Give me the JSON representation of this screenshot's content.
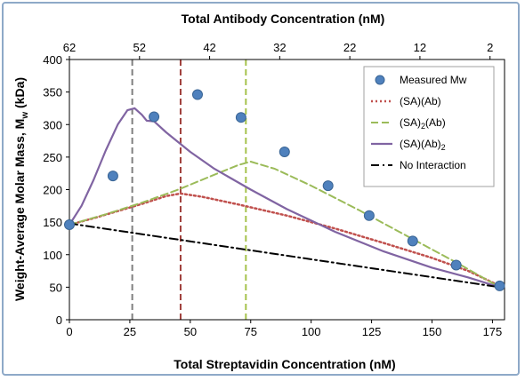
{
  "chart_data": {
    "type": "line",
    "xlabel": "Total Streptavidin Concentration (nM)",
    "x2label": "Total Antibody Concentration (nM)",
    "ylabel_main": "Weight-Average Molar Mass, M",
    "ylabel_sub": "w",
    "ylabel_unit": " (kDa)",
    "xlim": [
      0,
      180
    ],
    "ylim": [
      0,
      400
    ],
    "xticks": [
      "0",
      "25",
      "50",
      "75",
      "100",
      "125",
      "150",
      "175"
    ],
    "xtick_values": [
      0,
      25,
      50,
      75,
      100,
      125,
      150,
      175
    ],
    "yticks": [
      "0",
      "50",
      "100",
      "150",
      "200",
      "250",
      "300",
      "350",
      "400"
    ],
    "ytick_values": [
      0,
      50,
      100,
      150,
      200,
      250,
      300,
      350,
      400
    ],
    "x2ticks": [
      "62",
      "52",
      "42",
      "32",
      "22",
      "12",
      "2"
    ],
    "x2tick_values": [
      0,
      29,
      58,
      87,
      116,
      145,
      174
    ],
    "vlines": [
      {
        "x": 26,
        "color": "#7f7f7f"
      },
      {
        "x": 46,
        "color": "#a0403c"
      },
      {
        "x": 73,
        "color": "#a6c24c"
      }
    ],
    "series": [
      {
        "name": "Measured Mw",
        "type": "scatter",
        "color": "#4f81bd",
        "x": [
          0,
          18,
          35,
          53,
          71,
          89,
          107,
          124,
          142,
          160,
          178
        ],
        "y": [
          146,
          221,
          312,
          346,
          311,
          258,
          206,
          160,
          121,
          84,
          52
        ]
      },
      {
        "name": "(SA)(Ab)",
        "name_parts": [
          "(SA)(Ab)"
        ],
        "type": "line",
        "style": "dotted",
        "color": "#c0504d",
        "x": [
          0,
          10,
          20,
          30,
          40,
          46,
          55,
          70,
          90,
          110,
          130,
          150,
          165,
          178
        ],
        "y": [
          146,
          156,
          167,
          178,
          190,
          194,
          189,
          177,
          160,
          140,
          118,
          95,
          75,
          52
        ]
      },
      {
        "name": "(SA)2(Ab)",
        "name_parts": [
          "(SA)",
          "2",
          "(Ab)"
        ],
        "type": "line",
        "style": "dashed",
        "color": "#9bbb59",
        "x": [
          0,
          15,
          30,
          45,
          60,
          70,
          75,
          85,
          100,
          120,
          140,
          160,
          178
        ],
        "y": [
          146,
          162,
          180,
          200,
          223,
          238,
          243,
          232,
          206,
          168,
          128,
          88,
          50
        ]
      },
      {
        "name": "(SA)(Ab)2",
        "name_parts": [
          "(SA)(Ab)",
          "2"
        ],
        "type": "line",
        "style": "solid",
        "color": "#8064a2",
        "x": [
          0,
          5,
          10,
          15,
          20,
          24,
          27,
          30,
          32,
          35,
          40,
          50,
          60,
          75,
          90,
          110,
          130,
          150,
          165,
          178
        ],
        "y": [
          146,
          175,
          215,
          260,
          300,
          322,
          325,
          315,
          306,
          305,
          288,
          258,
          232,
          200,
          170,
          135,
          105,
          80,
          65,
          50
        ]
      },
      {
        "name": "No Interaction",
        "name_parts": [
          "No Interaction"
        ],
        "type": "line",
        "style": "dashdot",
        "color": "#000000",
        "x": [
          0,
          178
        ],
        "y": [
          148,
          50
        ]
      }
    ]
  }
}
